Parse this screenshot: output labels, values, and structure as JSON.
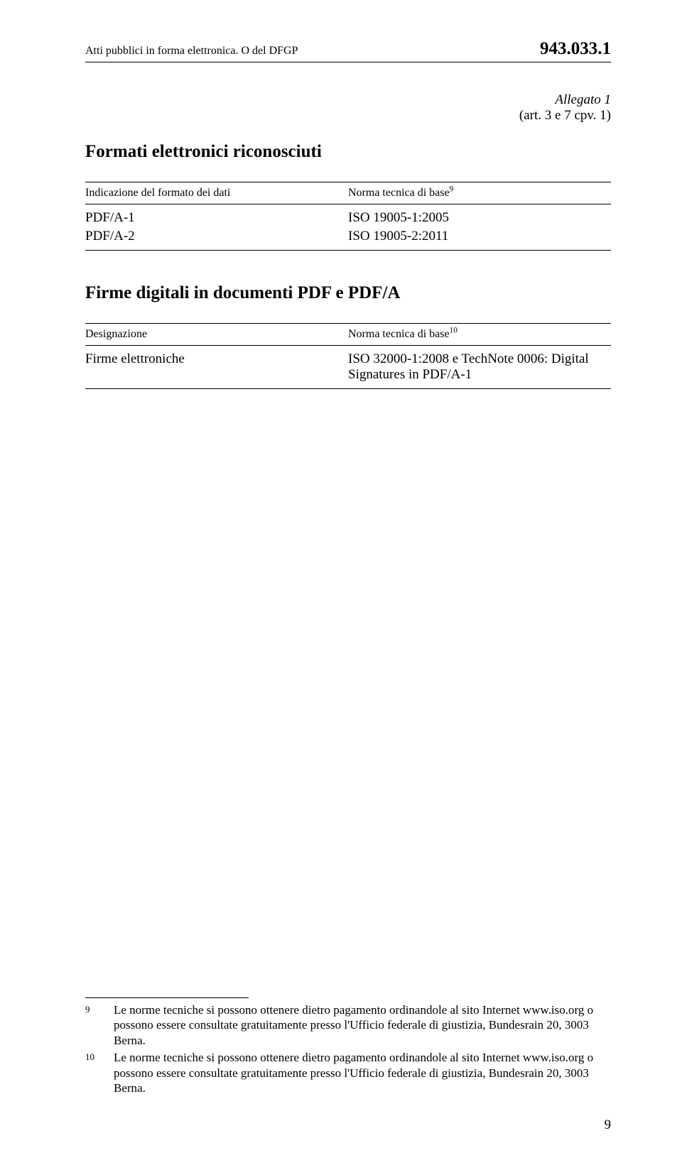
{
  "header": {
    "left": "Atti pubblici in forma elettronica. O del DFGP",
    "right": "943.033.1"
  },
  "allegato": {
    "line1": "Allegato 1",
    "line2": "(art. 3 e 7 cpv. 1)"
  },
  "section1": {
    "title": "Formati elettronici riconosciuti",
    "col1_header": "Indicazione del formato dei dati",
    "col2_header_prefix": "Norma tecnica di base",
    "col2_header_sup": "9",
    "rows": [
      {
        "c1": "PDF/A-1",
        "c2": "ISO 19005-1:2005"
      },
      {
        "c1": "PDF/A-2",
        "c2": "ISO 19005-2:2011"
      }
    ]
  },
  "section2": {
    "title": "Firme digitali in documenti PDF e PDF/A",
    "col1_header": "Designazione",
    "col2_header_prefix": "Norma tecnica di base",
    "col2_header_sup": "10",
    "rows": [
      {
        "c1": "Firme elettroniche",
        "c2": "ISO 32000-1:2008 e TechNote 0006: Digital Signatures in PDF/A-1"
      }
    ]
  },
  "footnotes": [
    {
      "num": "9",
      "text": "Le norme tecniche si possono ottenere dietro pagamento ordinandole al sito Internet www.iso.org o possono essere consultate gratuitamente presso l'Ufficio federale di giustizia, Bundesrain 20, 3003 Berna."
    },
    {
      "num": "10",
      "text": "Le norme tecniche si possono ottenere dietro pagamento ordinandole al sito Internet www.iso.org o possono essere consultate gratuitamente presso l'Ufficio federale di giustizia, Bundesrain 20, 3003 Berna."
    }
  ],
  "page_number": "9"
}
